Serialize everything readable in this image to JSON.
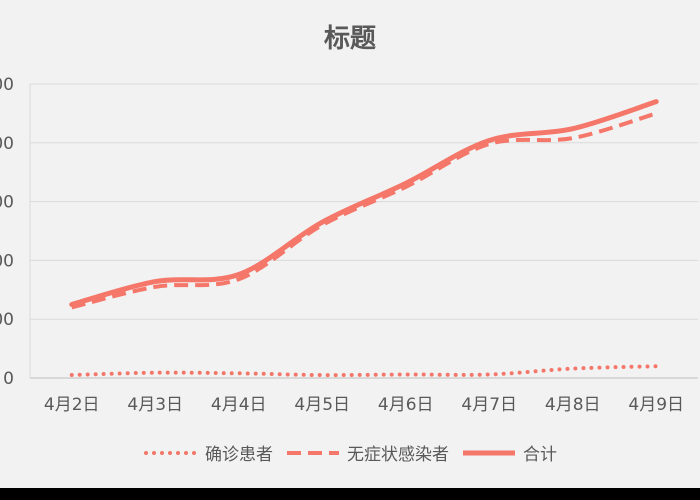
{
  "chart_data": {
    "type": "line",
    "title": "标题",
    "categories": [
      "4月2日",
      "4月3日",
      "4月4日",
      "4月5日",
      "4月6日",
      "4月7日",
      "4月8日",
      "4月9日"
    ],
    "y_tick_labels": [
      "0",
      "00",
      "00",
      "00",
      "00",
      "00"
    ],
    "ylim": [
      0,
      5
    ],
    "grid": true,
    "legend_position": "bottom",
    "series": [
      {
        "name": "确诊患者",
        "style": "dotted",
        "color": "#f4776a",
        "values": [
          0.05,
          0.09,
          0.08,
          0.05,
          0.06,
          0.06,
          0.16,
          0.2
        ]
      },
      {
        "name": "无症状感染者",
        "style": "dashed",
        "color": "#f4776a",
        "values": [
          1.2,
          1.55,
          1.68,
          2.6,
          3.25,
          3.98,
          4.08,
          4.5
        ]
      },
      {
        "name": "合计",
        "style": "solid",
        "color": "#f4776a",
        "values": [
          1.25,
          1.64,
          1.76,
          2.65,
          3.31,
          4.04,
          4.24,
          4.7
        ]
      }
    ]
  }
}
